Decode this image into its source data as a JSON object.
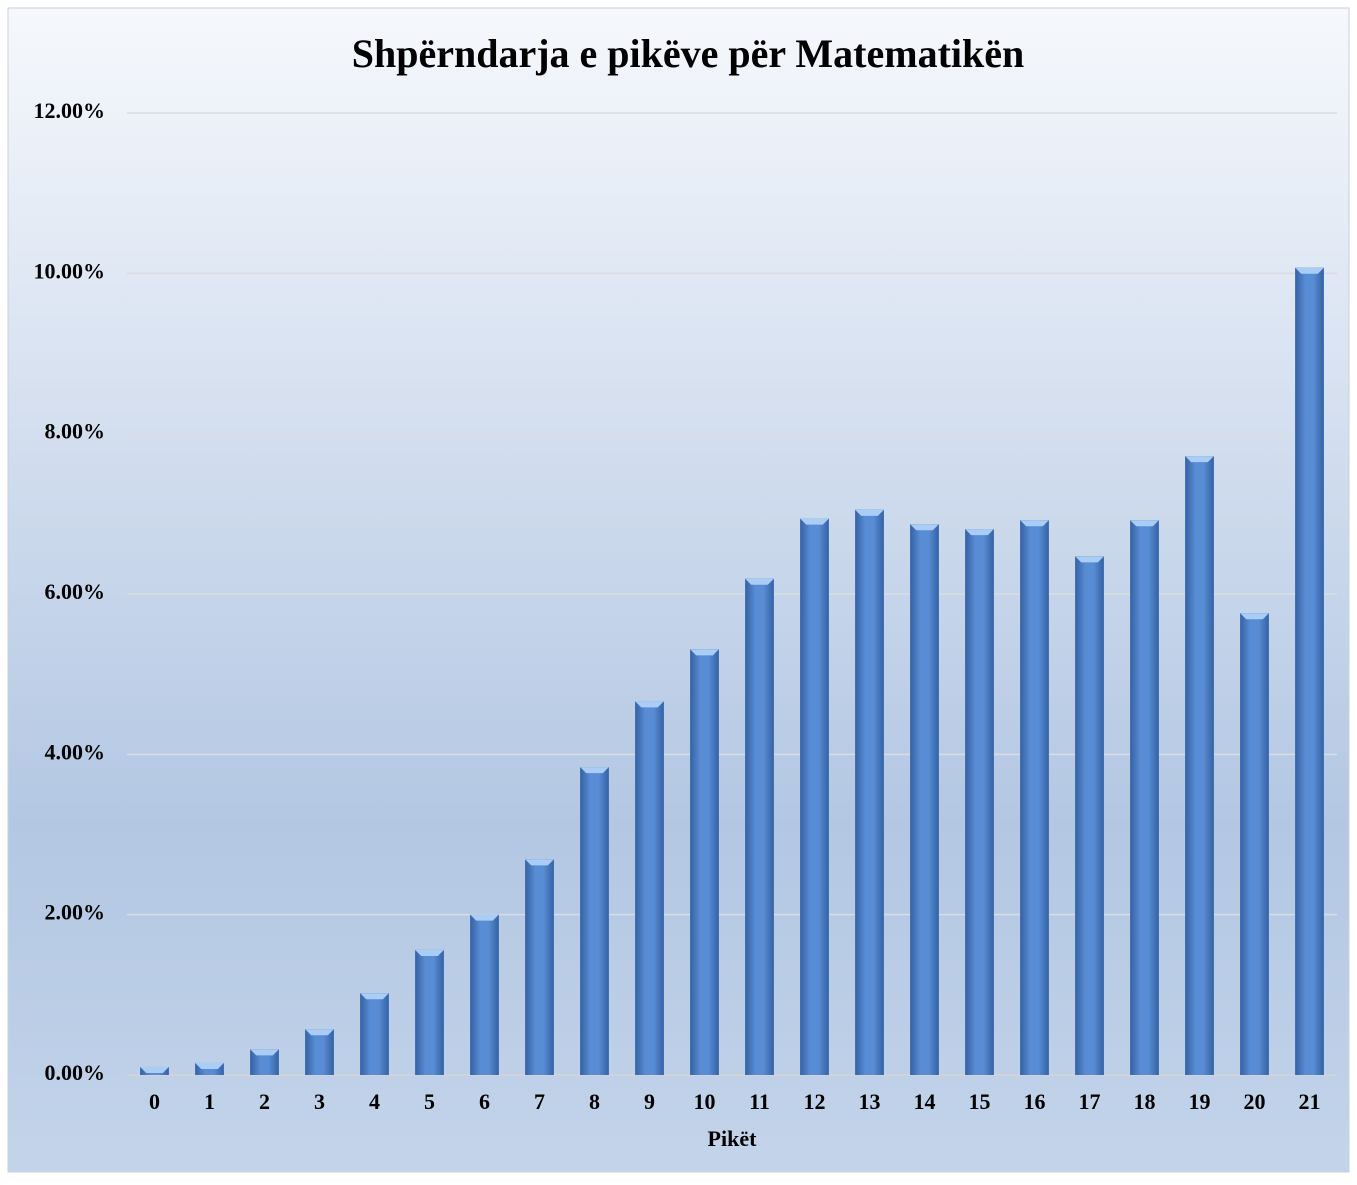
{
  "chart_data": {
    "type": "bar",
    "title": "Shpërndarja e pikëve për Matematikën",
    "x_label": "Pikët",
    "categories": [
      "0",
      "1",
      "2",
      "3",
      "4",
      "5",
      "6",
      "7",
      "8",
      "9",
      "10",
      "11",
      "12",
      "13",
      "14",
      "15",
      "16",
      "17",
      "18",
      "19",
      "20",
      "21"
    ],
    "values": [
      0.1,
      0.15,
      0.32,
      0.57,
      1.02,
      1.56,
      2.0,
      2.69,
      3.84,
      4.66,
      5.31,
      6.19,
      6.94,
      7.05,
      6.87,
      6.81,
      6.92,
      6.47,
      6.92,
      7.72,
      5.76,
      10.07
    ],
    "color": "#4f7fc6",
    "ylim": [
      0,
      12
    ],
    "yticks": [
      {
        "value": 0,
        "label": "0.00%"
      },
      {
        "value": 2,
        "label": "2.00%"
      },
      {
        "value": 4,
        "label": "4.00%"
      },
      {
        "value": 6,
        "label": "6.00%"
      },
      {
        "value": 8,
        "label": "8.00%"
      },
      {
        "value": 10,
        "label": "10.00%"
      },
      {
        "value": 12,
        "label": "12.00%"
      }
    ],
    "grid": true
  }
}
